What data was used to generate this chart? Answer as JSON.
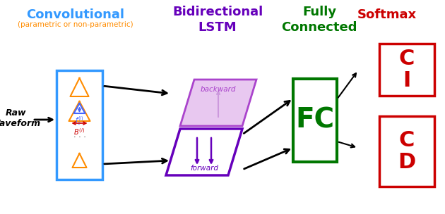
{
  "title_conv": "Convolutional",
  "subtitle_conv": "(parametric or non-parametric)",
  "title_bilstm": "Bidirectional\nLSTM",
  "title_fc": "Fully\nConnected",
  "title_softmax": "Softmax",
  "label_fc": "FC",
  "label_ci": "C\nI",
  "label_cd": "C\nD",
  "label_raw": "Raw\nWaveform",
  "label_forward": "forward",
  "label_backward": "backward",
  "color_conv_title": "#3399FF",
  "color_conv_subtitle": "#FF8C00",
  "color_conv_box": "#3399FF",
  "color_bilstm_fwd": "#6600BB",
  "color_bilstm_bwd": "#AA44CC",
  "color_bilstm_bwd_face": "#E8C8F0",
  "color_bilstm_bwd_arrow": "#CC99DD",
  "color_fc_box": "#007700",
  "color_softmax": "#CC0000",
  "color_arrow": "#000000",
  "color_orange_wave": "#FF8C00",
  "color_blue_wave": "#4466FF",
  "color_red_annot": "#CC0000",
  "bg_color": "#FFFFFF",
  "fig_width": 6.3,
  "fig_height": 3.04,
  "dpi": 100
}
